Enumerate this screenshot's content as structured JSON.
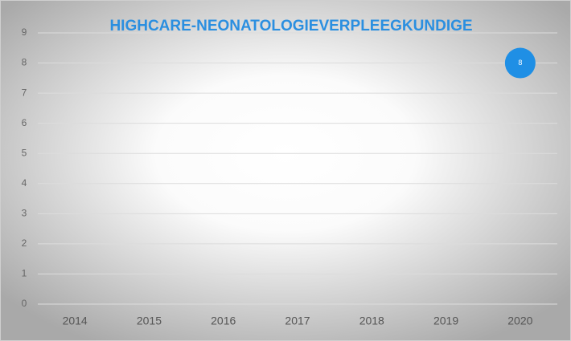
{
  "chart_data": {
    "type": "line",
    "title": "HIGHCARE-NEONATOLOGIEVERPLEEGKUNDIGE",
    "categories": [
      "2014",
      "2015",
      "2016",
      "2017",
      "2018",
      "2019",
      "2020"
    ],
    "series": [
      {
        "name": null,
        "color": "#1f8fe5",
        "values": [
          null,
          null,
          null,
          null,
          null,
          null,
          8
        ]
      }
    ],
    "ylim": [
      0,
      9
    ],
    "yticks": [
      0,
      1,
      2,
      3,
      4,
      5,
      6,
      7,
      8,
      9
    ],
    "grid": true,
    "data_labels": true
  }
}
